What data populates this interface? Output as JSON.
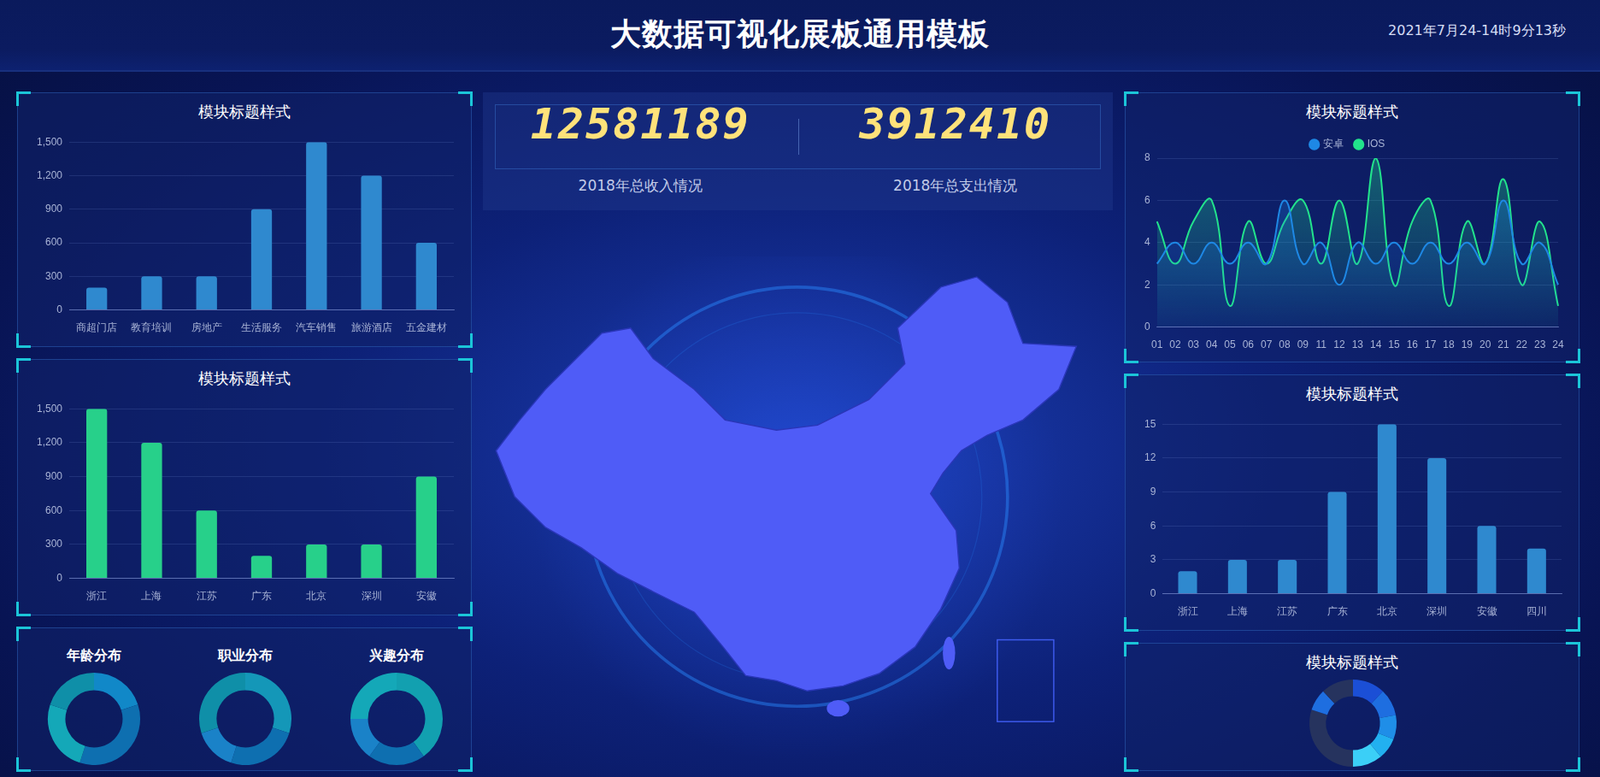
{
  "header": {
    "title": "大数据可视化展板通用模板",
    "datetime": "2021年7月24-14时9分13秒"
  },
  "kpis": [
    {
      "value": 12581189,
      "label": "2018年总收入情况"
    },
    {
      "value": 3912410,
      "label": "2018年总支出情况"
    }
  ],
  "chart_data": [
    {
      "type": "bar",
      "title": "模块标题样式",
      "categories": [
        "商超门店",
        "教育培训",
        "房地产",
        "生活服务",
        "汽车销售",
        "旅游酒店",
        "五金建材"
      ],
      "values": [
        200,
        300,
        300,
        900,
        1500,
        1200,
        600
      ],
      "color": "#2f89cf",
      "ylim": [
        0,
        1500
      ],
      "yticks": [
        0,
        300,
        600,
        900,
        {
          "value": 1200,
          "label": "1,200"
        },
        {
          "value": 1500,
          "label": "1,500"
        }
      ],
      "grid": true
    },
    {
      "type": "bar",
      "title": "模块标题样式",
      "categories": [
        "浙江",
        "上海",
        "江苏",
        "广东",
        "北京",
        "深圳",
        "安徽"
      ],
      "values": [
        1500,
        1200,
        600,
        200,
        300,
        300,
        900
      ],
      "color": "#27d08a",
      "ylim": [
        0,
        1500
      ],
      "yticks": [
        0,
        300,
        600,
        900,
        {
          "value": 1200,
          "label": "1,200"
        },
        {
          "value": 1500,
          "label": "1,500"
        }
      ],
      "grid": true
    },
    {
      "type": "doughnut",
      "title": "年龄分布",
      "values": [
        20,
        35,
        25,
        20
      ],
      "colors": [
        "#1188c8",
        "#0e6fb0",
        "#14a8b8",
        "#0f8fa8"
      ]
    },
    {
      "type": "doughnut",
      "title": "职业分布",
      "values": [
        30,
        25,
        15,
        30
      ],
      "colors": [
        "#1497b8",
        "#0e6fb0",
        "#1a82c8",
        "#0f8fa8"
      ]
    },
    {
      "type": "doughnut",
      "title": "兴趣分布",
      "values": [
        40,
        20,
        15,
        25
      ],
      "colors": [
        "#12a0b0",
        "#0e6fb0",
        "#1a82c8",
        "#14a8b8"
      ]
    },
    {
      "type": "line",
      "title": "模块标题样式",
      "categories": [
        "01",
        "02",
        "03",
        "04",
        "05",
        "06",
        "07",
        "08",
        "09",
        "11",
        "12",
        "13",
        "14",
        "15",
        "16",
        "17",
        "18",
        "19",
        "20",
        "21",
        "22",
        "23",
        "24"
      ],
      "series": [
        {
          "name": "安卓",
          "color": "#1e88e5",
          "values": [
            3,
            4,
            3,
            4,
            3,
            4,
            3,
            6,
            3,
            4,
            2,
            4,
            3,
            4,
            3,
            4,
            3,
            4,
            3,
            6,
            3,
            4,
            2
          ]
        },
        {
          "name": "IOS",
          "color": "#22e38c",
          "values": [
            5,
            3,
            5,
            6,
            1,
            5,
            3,
            5,
            6,
            3,
            6,
            3,
            8,
            2,
            5,
            6,
            1,
            5,
            3,
            7,
            2,
            5,
            1
          ]
        }
      ],
      "ylim": [
        0,
        8
      ],
      "yticks": [
        0,
        2,
        4,
        6,
        8
      ],
      "grid": true,
      "legend": "top"
    },
    {
      "type": "bar",
      "title": "模块标题样式",
      "categories": [
        "浙江",
        "上海",
        "江苏",
        "广东",
        "北京",
        "深圳",
        "安徽",
        "四川"
      ],
      "values": [
        2,
        3,
        3,
        9,
        15,
        12,
        6,
        4
      ],
      "color": "#2f89cf",
      "ylim": [
        0,
        15
      ],
      "yticks": [
        0,
        3,
        6,
        9,
        12,
        15
      ],
      "grid": true
    },
    {
      "type": "doughnut",
      "title": "模块标题样式",
      "values": [
        12,
        10,
        9,
        8,
        11,
        30,
        8,
        12
      ],
      "colors": [
        "#1b4fd6",
        "#1e6ee0",
        "#1f8ee8",
        "#22b0f0",
        "#3bcff7",
        "#26335e",
        "#1e6ee0",
        "#26335e"
      ]
    }
  ]
}
